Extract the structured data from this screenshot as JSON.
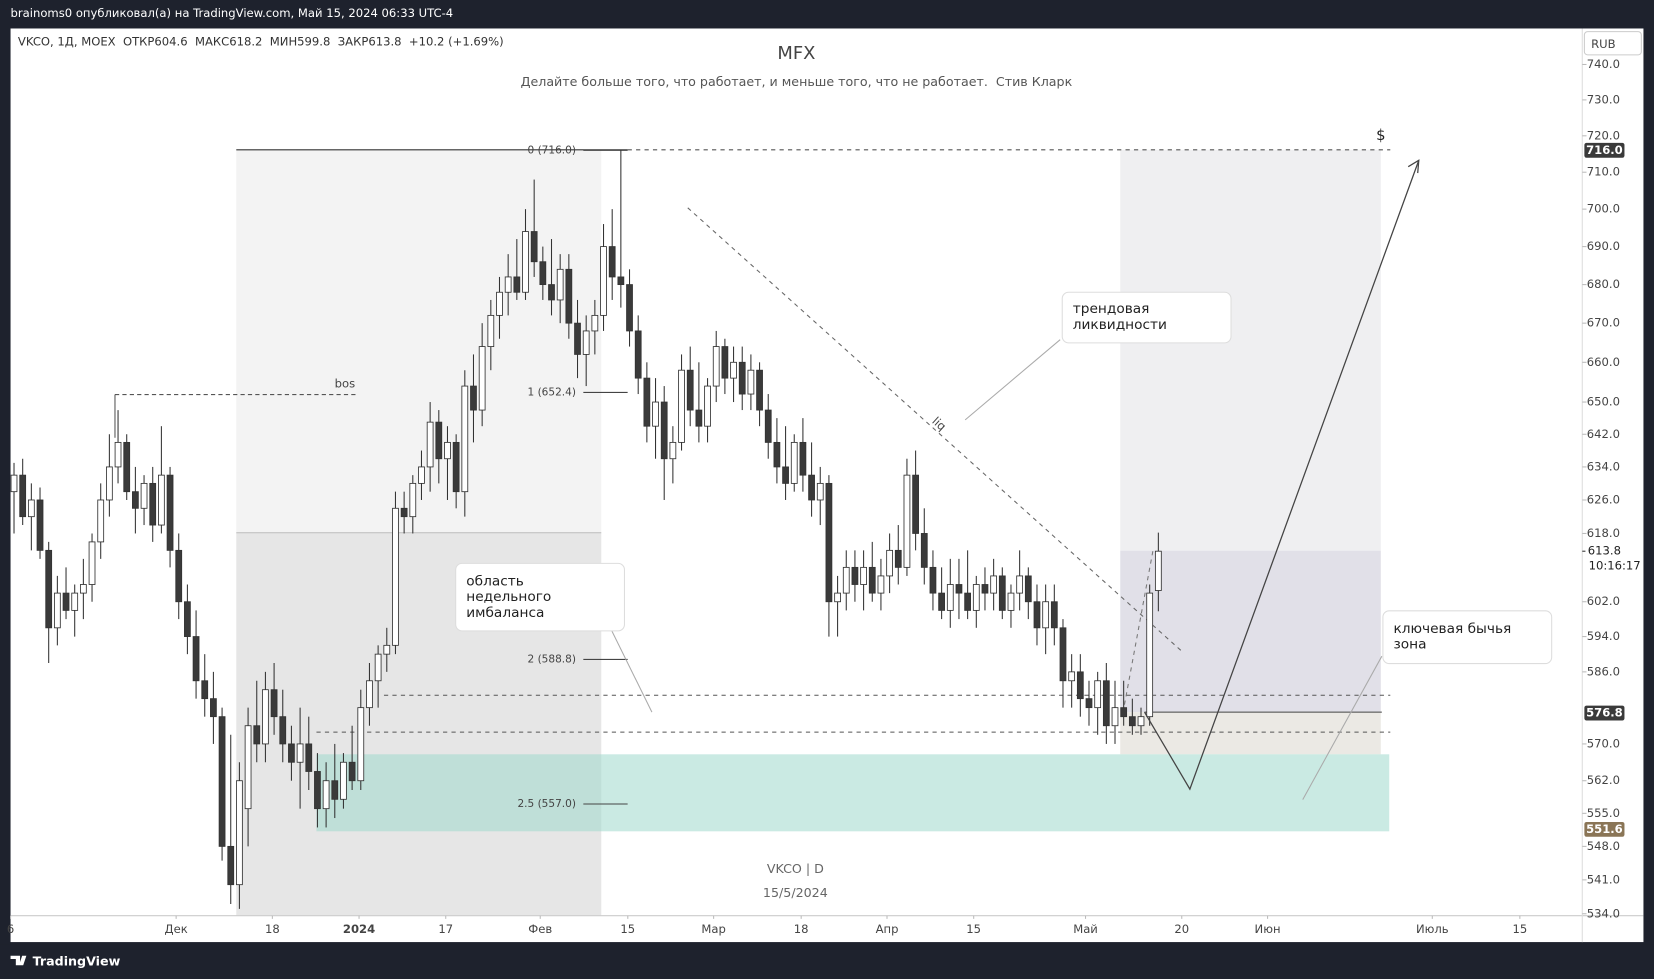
{
  "header": "brainoms0 опубликовал(а) на TradingView.com, Май 15, 2024 06:33 UTC-4",
  "chart_data": {
    "type": "candlestick",
    "title": "MFX",
    "subtitle": "Делайте больше того, что работает, и меньше того, что не работает.  Стив Кларк",
    "symbol_info": "VKCO, 1Д, MOEX  ОТКР604.6  МАКС618.2  МИН599.8  ЗАКР613.8  +10.2 (+1.69%)",
    "currency": "RUB",
    "log_scale": true,
    "xlim": [
      -0.4,
      180.9
    ],
    "ylim": [
      533.6,
      750
    ],
    "xticks": [
      {
        "value": -0.4,
        "label": "6"
      },
      {
        "value": 18.7,
        "label": "Дек"
      },
      {
        "value": 29.8,
        "label": "18"
      },
      {
        "value": 39.8,
        "label": "2024"
      },
      {
        "value": 49.8,
        "label": "17"
      },
      {
        "value": 60.7,
        "label": "Фев"
      },
      {
        "value": 70.8,
        "label": "15"
      },
      {
        "value": 80.7,
        "label": "Мар"
      },
      {
        "value": 90.8,
        "label": "18"
      },
      {
        "value": 100.7,
        "label": "Апр"
      },
      {
        "value": 110.7,
        "label": "15"
      },
      {
        "value": 123.6,
        "label": "Май"
      },
      {
        "value": 134.7,
        "label": "20"
      },
      {
        "value": 144.6,
        "label": "Июн"
      },
      {
        "value": 163.6,
        "label": "Июль"
      },
      {
        "value": 173.7,
        "label": "15"
      }
    ],
    "yticks": [
      {
        "value": 740,
        "label": "740.0"
      },
      {
        "value": 730,
        "label": "730.0"
      },
      {
        "value": 720,
        "label": "720.0"
      },
      {
        "value": 710,
        "label": "710.0"
      },
      {
        "value": 700,
        "label": "700.0"
      },
      {
        "value": 690,
        "label": "690.0"
      },
      {
        "value": 680,
        "label": "680.0"
      },
      {
        "value": 670,
        "label": "670.0"
      },
      {
        "value": 660,
        "label": "660.0"
      },
      {
        "value": 650,
        "label": "650.0"
      },
      {
        "value": 642,
        "label": "642.0"
      },
      {
        "value": 634,
        "label": "634.0"
      },
      {
        "value": 626,
        "label": "626.0"
      },
      {
        "value": 618,
        "label": "618.0"
      },
      {
        "value": 602,
        "label": "602.0"
      },
      {
        "value": 594,
        "label": "594.0"
      },
      {
        "value": 586,
        "label": "586.0"
      },
      {
        "value": 570,
        "label": "570.0"
      },
      {
        "value": 562,
        "label": "562.0"
      },
      {
        "value": 555,
        "label": "555.0"
      },
      {
        "value": 548,
        "label": "548.0"
      },
      {
        "value": 541,
        "label": "541.0"
      },
      {
        "value": 534,
        "label": "534.0"
      }
    ],
    "candles": [
      [
        628,
        635,
        618,
        632
      ],
      [
        632,
        636,
        620,
        622
      ],
      [
        622,
        630,
        614,
        626
      ],
      [
        626,
        629,
        612,
        614
      ],
      [
        614,
        616,
        588,
        596
      ],
      [
        596,
        608,
        592,
        604
      ],
      [
        604,
        610,
        598,
        600
      ],
      [
        600,
        606,
        594,
        604
      ],
      [
        604,
        612,
        598,
        606
      ],
      [
        606,
        618,
        602,
        616
      ],
      [
        616,
        630,
        612,
        626
      ],
      [
        626,
        642,
        622,
        634
      ],
      [
        634,
        648,
        630,
        640
      ],
      [
        640,
        642,
        626,
        628
      ],
      [
        628,
        634,
        618,
        624
      ],
      [
        624,
        632,
        620,
        630
      ],
      [
        630,
        634,
        616,
        620
      ],
      [
        620,
        644,
        618,
        632
      ],
      [
        632,
        634,
        610,
        614
      ],
      [
        614,
        618,
        598,
        602
      ],
      [
        602,
        606,
        590,
        594
      ],
      [
        594,
        600,
        580,
        584
      ],
      [
        584,
        590,
        576,
        580
      ],
      [
        580,
        586,
        570,
        576
      ],
      [
        576,
        578,
        545,
        548
      ],
      [
        548,
        572,
        536,
        540
      ],
      [
        540,
        566,
        535,
        562
      ],
      [
        556,
        578,
        548,
        574
      ],
      [
        574,
        584,
        566,
        570
      ],
      [
        570,
        586,
        566,
        582
      ],
      [
        582,
        588,
        572,
        576
      ],
      [
        576,
        582,
        566,
        570
      ],
      [
        570,
        574,
        562,
        566
      ],
      [
        566,
        578,
        556,
        570
      ],
      [
        570,
        576,
        560,
        564
      ],
      [
        564,
        568,
        552,
        556
      ],
      [
        556,
        566,
        552,
        562
      ],
      [
        562,
        570,
        554,
        558
      ],
      [
        558,
        568,
        556,
        566
      ],
      [
        566,
        574,
        560,
        562
      ],
      [
        562,
        582,
        560,
        578
      ],
      [
        578,
        588,
        574,
        584
      ],
      [
        584,
        592,
        578,
        590
      ],
      [
        590,
        596,
        586,
        592
      ],
      [
        592,
        628,
        590,
        624
      ],
      [
        624,
        628,
        618,
        622
      ],
      [
        622,
        632,
        618,
        630
      ],
      [
        630,
        638,
        626,
        634
      ],
      [
        634,
        650,
        628,
        645
      ],
      [
        645,
        648,
        630,
        636
      ],
      [
        636,
        644,
        626,
        640
      ],
      [
        640,
        642,
        624,
        628
      ],
      [
        628,
        658,
        622,
        654
      ],
      [
        654,
        662,
        640,
        648
      ],
      [
        648,
        670,
        644,
        664
      ],
      [
        664,
        676,
        658,
        672
      ],
      [
        672,
        682,
        666,
        678
      ],
      [
        678,
        688,
        672,
        682
      ],
      [
        682,
        692,
        676,
        678
      ],
      [
        678,
        700,
        676,
        694
      ],
      [
        694,
        708,
        682,
        686
      ],
      [
        686,
        690,
        676,
        680
      ],
      [
        680,
        692,
        672,
        676
      ],
      [
        676,
        688,
        670,
        684
      ],
      [
        684,
        688,
        666,
        670
      ],
      [
        670,
        676,
        656,
        662
      ],
      [
        662,
        672,
        654,
        668
      ],
      [
        668,
        676,
        662,
        672
      ],
      [
        672,
        696,
        668,
        690
      ],
      [
        690,
        700,
        676,
        682
      ],
      [
        682,
        716,
        674,
        680
      ],
      [
        680,
        684,
        664,
        668
      ],
      [
        668,
        672,
        652,
        656
      ],
      [
        656,
        660,
        640,
        644
      ],
      [
        644,
        656,
        636,
        650
      ],
      [
        650,
        654,
        626,
        636
      ],
      [
        636,
        644,
        630,
        640
      ],
      [
        640,
        662,
        638,
        658
      ],
      [
        658,
        664,
        644,
        648
      ],
      [
        648,
        660,
        640,
        644
      ],
      [
        644,
        656,
        640,
        654
      ],
      [
        654,
        668,
        650,
        664
      ],
      [
        664,
        666,
        652,
        656
      ],
      [
        656,
        664,
        650,
        660
      ],
      [
        660,
        664,
        648,
        652
      ],
      [
        652,
        662,
        648,
        658
      ],
      [
        658,
        660,
        644,
        648
      ],
      [
        648,
        652,
        636,
        640
      ],
      [
        640,
        646,
        630,
        634
      ],
      [
        634,
        644,
        626,
        630
      ],
      [
        630,
        642,
        628,
        640
      ],
      [
        640,
        646,
        628,
        632
      ],
      [
        632,
        640,
        622,
        626
      ],
      [
        626,
        634,
        620,
        630
      ],
      [
        630,
        632,
        594,
        602
      ],
      [
        602,
        608,
        594,
        604
      ],
      [
        604,
        614,
        600,
        610
      ],
      [
        610,
        614,
        602,
        606
      ],
      [
        606,
        614,
        600,
        610
      ],
      [
        610,
        616,
        602,
        604
      ],
      [
        604,
        612,
        600,
        608
      ],
      [
        608,
        618,
        604,
        614
      ],
      [
        614,
        620,
        606,
        610
      ],
      [
        610,
        636,
        608,
        632
      ],
      [
        632,
        638,
        614,
        618
      ],
      [
        618,
        624,
        606,
        610
      ],
      [
        610,
        614,
        600,
        604
      ],
      [
        604,
        610,
        598,
        600
      ],
      [
        600,
        612,
        596,
        606
      ],
      [
        606,
        612,
        598,
        604
      ],
      [
        604,
        614,
        598,
        600
      ],
      [
        600,
        608,
        596,
        606
      ],
      [
        606,
        610,
        600,
        604
      ],
      [
        604,
        612,
        600,
        608
      ],
      [
        608,
        610,
        598,
        600
      ],
      [
        600,
        606,
        596,
        604
      ],
      [
        604,
        614,
        600,
        608
      ],
      [
        608,
        610,
        598,
        602
      ],
      [
        602,
        606,
        592,
        596
      ],
      [
        596,
        606,
        590,
        602
      ],
      [
        602,
        606,
        592,
        596
      ],
      [
        596,
        598,
        578,
        584
      ],
      [
        584,
        590,
        578,
        586
      ],
      [
        586,
        590,
        576,
        580
      ],
      [
        580,
        584,
        574,
        578
      ],
      [
        578,
        586,
        572,
        584
      ],
      [
        584,
        588,
        570,
        574
      ],
      [
        574,
        584,
        570,
        578
      ],
      [
        578,
        584,
        574,
        576
      ],
      [
        576,
        580,
        572,
        574
      ],
      [
        574,
        578,
        572,
        576
      ],
      [
        576,
        606,
        574,
        604
      ],
      [
        604.6,
        618.2,
        599.8,
        613.8
      ]
    ],
    "fib_levels": [
      {
        "value": 716,
        "label": "0 (716.0)"
      },
      {
        "value": 652.4,
        "label": "1 (652.4)"
      },
      {
        "value": 588.8,
        "label": "2 (588.8)"
      },
      {
        "value": 557,
        "label": "2.5 (557.0)"
      }
    ],
    "price_labels": [
      {
        "value": 716,
        "label": "716.0"
      },
      {
        "value": 613.8,
        "label": "613.8"
      },
      {
        "value": 576.8,
        "label": "576.8"
      },
      {
        "value": 551.6,
        "label": "551.6"
      }
    ],
    "countdown": "10:16:17",
    "annotations": {
      "bos": "bos",
      "liq": "liq",
      "target": "$",
      "trend_liquidity": [
        "трендовая",
        "ликвидности"
      ],
      "weekly_imbalance": [
        "область",
        "недельного",
        "имбаланса"
      ],
      "bullish_zone": [
        "ключевая бычья",
        "зона"
      ]
    },
    "watermark": [
      "VKCO | D",
      "15/5/2024"
    ]
  },
  "footer": "TradingView"
}
